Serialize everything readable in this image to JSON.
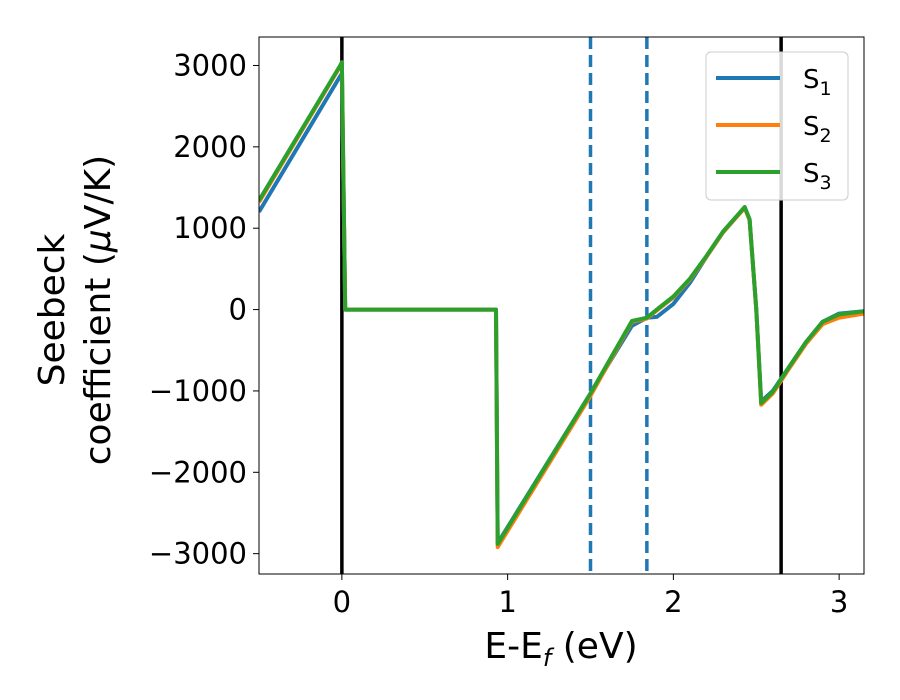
{
  "chart_data": {
    "type": "line",
    "xlabel": "E-E",
    "xlabel_sub": "f",
    "xlabel_unit": " (eV)",
    "ylabel_line1": "Seebeck",
    "ylabel_line2_a": "coefficient  (",
    "ylabel_line2_mu": "μ",
    "ylabel_line2_b": "V/K)",
    "xlim": [
      -0.5,
      3.15
    ],
    "ylim": [
      -3250,
      3350
    ],
    "xticks": [
      0,
      1,
      2,
      3
    ],
    "xtick_labels": [
      "0",
      "1",
      "2",
      "3"
    ],
    "yticks": [
      -3000,
      -2000,
      -1000,
      0,
      1000,
      2000,
      3000
    ],
    "ytick_labels": [
      "−3000",
      "−2000",
      "−1000",
      "0",
      "1000",
      "2000",
      "3000"
    ],
    "legend_position": "top-right",
    "vlines": [
      {
        "x": 0.0,
        "style": "solid",
        "color": "#000000"
      },
      {
        "x": 2.65,
        "style": "solid",
        "color": "#000000"
      },
      {
        "x": 1.5,
        "style": "dashed",
        "color": "#1f77b4"
      },
      {
        "x": 1.84,
        "style": "dashed",
        "color": "#1f77b4"
      }
    ],
    "series": [
      {
        "name": "S",
        "name_sub": "1",
        "color": "#1f77b4",
        "x": [
          -0.5,
          -0.01,
          0.0,
          0.02,
          0.93,
          0.94,
          1.5,
          1.75,
          1.84,
          1.9,
          2.0,
          2.1,
          2.2,
          2.3,
          2.43,
          2.46,
          2.5,
          2.53,
          2.6,
          2.7,
          2.8,
          2.9,
          3.0,
          3.15
        ],
        "y": [
          1200,
          2870,
          2900,
          0,
          0,
          -2870,
          -1030,
          -200,
          -100,
          -90,
          70,
          330,
          650,
          950,
          1260,
          1100,
          0,
          -1130,
          -1000,
          -700,
          -400,
          -150,
          -50,
          -20
        ]
      },
      {
        "name": "S",
        "name_sub": "2",
        "color": "#ff7f0e",
        "x": [
          -0.5,
          -0.01,
          0.0,
          0.02,
          0.93,
          0.94,
          1.5,
          1.75,
          1.84,
          1.9,
          2.0,
          2.1,
          2.2,
          2.3,
          2.43,
          2.46,
          2.5,
          2.53,
          2.6,
          2.7,
          2.8,
          2.9,
          3.0,
          3.15
        ],
        "y": [
          1320,
          2990,
          3020,
          0,
          0,
          -2920,
          -1060,
          -150,
          -110,
          -10,
          150,
          370,
          650,
          950,
          1250,
          1100,
          0,
          -1170,
          -1030,
          -720,
          -420,
          -180,
          -100,
          -50
        ]
      },
      {
        "name": "S",
        "name_sub": "3",
        "color": "#2ca02c",
        "x": [
          -0.5,
          -0.01,
          0.0,
          0.02,
          0.93,
          0.94,
          1.5,
          1.75,
          1.84,
          1.9,
          2.0,
          2.1,
          2.2,
          2.3,
          2.43,
          2.46,
          2.5,
          2.53,
          2.6,
          2.7,
          2.8,
          2.9,
          3.0,
          3.15
        ],
        "y": [
          1340,
          3000,
          3040,
          0,
          0,
          -2880,
          -1030,
          -140,
          -100,
          0,
          160,
          380,
          660,
          960,
          1260,
          1110,
          0,
          -1150,
          -1010,
          -700,
          -400,
          -150,
          -60,
          -20
        ]
      }
    ]
  }
}
